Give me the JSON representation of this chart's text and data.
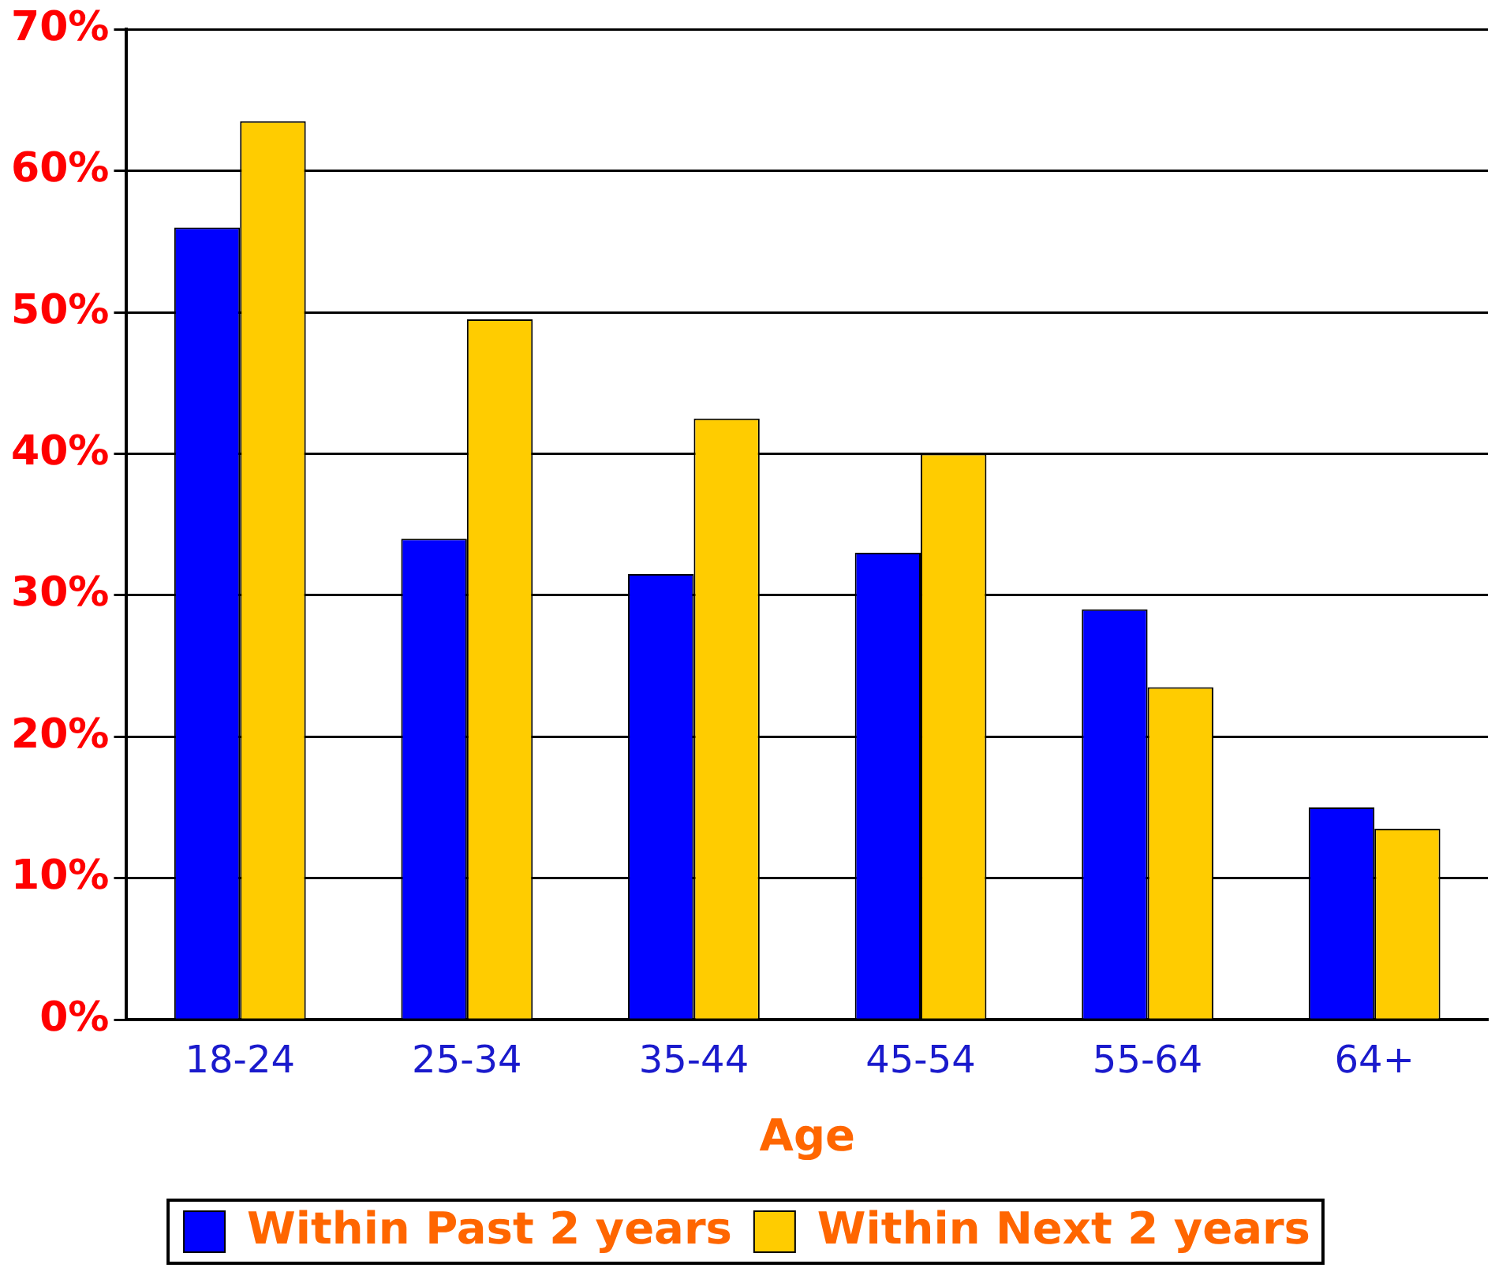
{
  "chart_data": {
    "type": "bar",
    "xlabel": "Age",
    "categories": [
      "18-24",
      "25-34",
      "35-44",
      "45-54",
      "55-64",
      "64+"
    ],
    "series": [
      {
        "name": "Within Past 2 years",
        "color": "#0000ff",
        "values": [
          56,
          34,
          31.5,
          33,
          29,
          15
        ]
      },
      {
        "name": "Within Next 2 years",
        "color": "#ffcc00",
        "values": [
          63.5,
          49.5,
          42.5,
          40,
          23.5,
          13.5
        ]
      }
    ],
    "ylim": [
      0,
      70
    ],
    "yticks": [
      {
        "value": 0,
        "label": "0%"
      },
      {
        "value": 10,
        "label": "10%"
      },
      {
        "value": 20,
        "label": "20%"
      },
      {
        "value": 30,
        "label": "30%"
      },
      {
        "value": 40,
        "label": "40%"
      },
      {
        "value": 50,
        "label": "50%"
      },
      {
        "value": 60,
        "label": "60%"
      },
      {
        "value": 70,
        "label": "70%"
      }
    ],
    "grid": "y",
    "legend": "bottom"
  }
}
